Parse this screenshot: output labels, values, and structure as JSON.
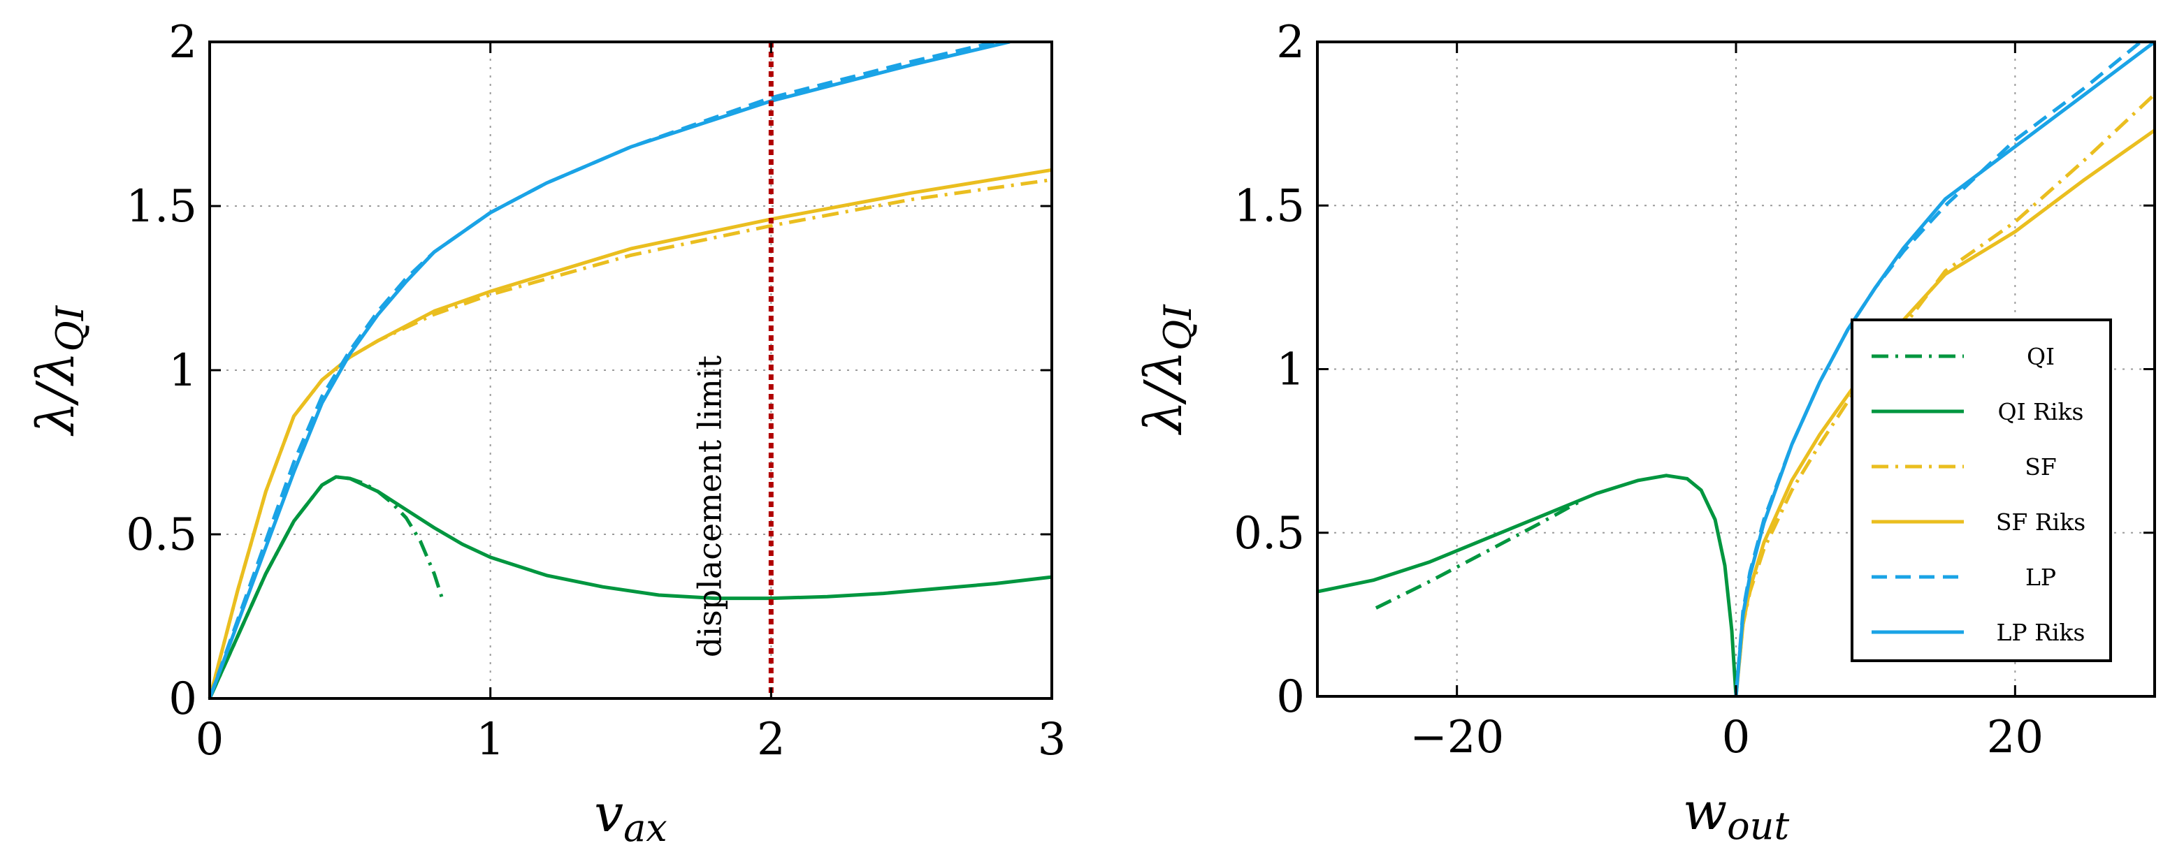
{
  "colors": {
    "qi": "#00963f",
    "sf": "#eabe1f",
    "lp": "#1aa3e6",
    "limit": "#b00000",
    "frame": "#000000"
  },
  "chart_data": [
    {
      "id": "left",
      "type": "line",
      "xlim": [
        0,
        3
      ],
      "ylim": [
        0,
        2
      ],
      "xticks": [
        0,
        1,
        2,
        3
      ],
      "xtick_labels": [
        "0",
        "1",
        "2",
        "3"
      ],
      "yticks": [
        0,
        0.5,
        1,
        1.5,
        2
      ],
      "ytick_labels": [
        "0",
        "0.5",
        "1",
        "1.5",
        "2"
      ],
      "xlabel_base": "v",
      "xlabel_sub": "ax",
      "ylabel_main": "λ/λ",
      "ylabel_sub": "QI",
      "grid": true,
      "annotation": {
        "text": "displacement limit",
        "x": 2,
        "color": "limit"
      },
      "series": [
        {
          "name": "QI",
          "color": "qi",
          "dash": "dashdot",
          "points": [
            [
              0,
              0
            ],
            [
              0.1,
              0.19
            ],
            [
              0.2,
              0.38
            ],
            [
              0.3,
              0.54
            ],
            [
              0.4,
              0.65
            ],
            [
              0.45,
              0.675
            ],
            [
              0.5,
              0.67
            ],
            [
              0.55,
              0.655
            ],
            [
              0.6,
              0.63
            ],
            [
              0.65,
              0.595
            ],
            [
              0.7,
              0.55
            ],
            [
              0.75,
              0.48
            ],
            [
              0.8,
              0.38
            ],
            [
              0.83,
              0.3
            ]
          ]
        },
        {
          "name": "QI Riks",
          "color": "qi",
          "dash": "solid",
          "points": [
            [
              0,
              0
            ],
            [
              0.1,
              0.19
            ],
            [
              0.2,
              0.38
            ],
            [
              0.3,
              0.54
            ],
            [
              0.4,
              0.65
            ],
            [
              0.45,
              0.675
            ],
            [
              0.5,
              0.67
            ],
            [
              0.6,
              0.63
            ],
            [
              0.7,
              0.575
            ],
            [
              0.8,
              0.52
            ],
            [
              0.9,
              0.47
            ],
            [
              1.0,
              0.43
            ],
            [
              1.2,
              0.375
            ],
            [
              1.4,
              0.34
            ],
            [
              1.6,
              0.315
            ],
            [
              1.8,
              0.305
            ],
            [
              2.0,
              0.305
            ],
            [
              2.2,
              0.31
            ],
            [
              2.4,
              0.32
            ],
            [
              2.6,
              0.335
            ],
            [
              2.8,
              0.35
            ],
            [
              3.0,
              0.37
            ]
          ]
        },
        {
          "name": "SF",
          "color": "sf",
          "dash": "dashdot",
          "points": [
            [
              0,
              0
            ],
            [
              0.1,
              0.33
            ],
            [
              0.2,
              0.63
            ],
            [
              0.3,
              0.86
            ],
            [
              0.4,
              0.97
            ],
            [
              0.5,
              1.04
            ],
            [
              0.6,
              1.09
            ],
            [
              0.8,
              1.17
            ],
            [
              1.0,
              1.23
            ],
            [
              1.5,
              1.35
            ],
            [
              2.0,
              1.44
            ],
            [
              2.5,
              1.52
            ],
            [
              3.0,
              1.58
            ]
          ]
        },
        {
          "name": "SF Riks",
          "color": "sf",
          "dash": "solid",
          "points": [
            [
              0,
              0
            ],
            [
              0.1,
              0.33
            ],
            [
              0.2,
              0.63
            ],
            [
              0.3,
              0.86
            ],
            [
              0.4,
              0.97
            ],
            [
              0.5,
              1.04
            ],
            [
              0.6,
              1.09
            ],
            [
              0.8,
              1.18
            ],
            [
              1.0,
              1.24
            ],
            [
              1.5,
              1.37
            ],
            [
              2.0,
              1.46
            ],
            [
              2.5,
              1.54
            ],
            [
              3.0,
              1.61
            ]
          ]
        },
        {
          "name": "LP",
          "color": "lp",
          "dash": "dashed",
          "points": [
            [
              0,
              0
            ],
            [
              0.1,
              0.24
            ],
            [
              0.2,
              0.48
            ],
            [
              0.3,
              0.72
            ],
            [
              0.4,
              0.92
            ],
            [
              0.5,
              1.06
            ],
            [
              0.6,
              1.18
            ],
            [
              0.7,
              1.28
            ],
            [
              0.8,
              1.36
            ],
            [
              1.0,
              1.48
            ],
            [
              1.2,
              1.57
            ],
            [
              1.5,
              1.68
            ],
            [
              2.0,
              1.83
            ],
            [
              2.5,
              1.94
            ],
            [
              2.8,
              2.0
            ]
          ]
        },
        {
          "name": "LP Riks",
          "color": "lp",
          "dash": "solid",
          "points": [
            [
              0,
              0
            ],
            [
              0.1,
              0.23
            ],
            [
              0.2,
              0.46
            ],
            [
              0.3,
              0.69
            ],
            [
              0.4,
              0.9
            ],
            [
              0.5,
              1.05
            ],
            [
              0.6,
              1.17
            ],
            [
              0.7,
              1.27
            ],
            [
              0.8,
              1.36
            ],
            [
              1.0,
              1.48
            ],
            [
              1.2,
              1.57
            ],
            [
              1.5,
              1.68
            ],
            [
              2.0,
              1.82
            ],
            [
              2.5,
              1.93
            ],
            [
              2.85,
              2.0
            ]
          ]
        }
      ]
    },
    {
      "id": "right",
      "type": "line",
      "xlim": [
        -30,
        30
      ],
      "ylim": [
        0,
        2
      ],
      "xticks": [
        -20,
        0,
        20
      ],
      "xtick_labels": [
        "−20",
        "0",
        "20"
      ],
      "yticks": [
        0,
        0.5,
        1,
        1.5,
        2
      ],
      "ytick_labels": [
        "0",
        "0.5",
        "1",
        "1.5",
        "2"
      ],
      "xlabel_base": "w",
      "xlabel_sub": "out",
      "ylabel_main": "λ/λ",
      "ylabel_sub": "QI",
      "grid": true,
      "legend_position": "lower-right",
      "series": [
        {
          "name": "QI",
          "color": "qi",
          "dash": "dashdot",
          "points": [
            [
              -25.8,
              0.27
            ],
            [
              -22,
              0.35
            ],
            [
              -18,
              0.44
            ],
            [
              -14,
              0.53
            ],
            [
              -11,
              0.6
            ]
          ]
        },
        {
          "name": "QI Riks",
          "color": "qi",
          "dash": "solid",
          "points": [
            [
              -30,
              0.32
            ],
            [
              -26,
              0.355
            ],
            [
              -22,
              0.41
            ],
            [
              -18,
              0.48
            ],
            [
              -14,
              0.55
            ],
            [
              -10,
              0.62
            ],
            [
              -7,
              0.66
            ],
            [
              -5,
              0.675
            ],
            [
              -3.5,
              0.665
            ],
            [
              -2.5,
              0.63
            ],
            [
              -1.5,
              0.54
            ],
            [
              -0.8,
              0.4
            ],
            [
              -0.3,
              0.2
            ],
            [
              0,
              0
            ]
          ]
        },
        {
          "name": "SF",
          "color": "sf",
          "dash": "dashdot",
          "points": [
            [
              0,
              0
            ],
            [
              0.5,
              0.22
            ],
            [
              1,
              0.32
            ],
            [
              2,
              0.45
            ],
            [
              4,
              0.63
            ],
            [
              6,
              0.77
            ],
            [
              8,
              0.9
            ],
            [
              10,
              1.02
            ],
            [
              12,
              1.13
            ],
            [
              15,
              1.3
            ],
            [
              20,
              1.45
            ],
            [
              25,
              1.64
            ],
            [
              30,
              1.84
            ]
          ]
        },
        {
          "name": "SF Riks",
          "color": "sf",
          "dash": "solid",
          "points": [
            [
              0,
              0
            ],
            [
              0.5,
              0.22
            ],
            [
              1,
              0.33
            ],
            [
              2,
              0.47
            ],
            [
              4,
              0.66
            ],
            [
              6,
              0.8
            ],
            [
              8,
              0.92
            ],
            [
              10,
              1.04
            ],
            [
              12,
              1.15
            ],
            [
              15,
              1.29
            ],
            [
              20,
              1.42
            ],
            [
              25,
              1.58
            ],
            [
              30,
              1.73
            ]
          ]
        },
        {
          "name": "LP",
          "color": "lp",
          "dash": "dashed",
          "points": [
            [
              0,
              0
            ],
            [
              0.5,
              0.26
            ],
            [
              1,
              0.38
            ],
            [
              2,
              0.54
            ],
            [
              4,
              0.77
            ],
            [
              6,
              0.96
            ],
            [
              8,
              1.12
            ],
            [
              10,
              1.25
            ],
            [
              12,
              1.36
            ],
            [
              15,
              1.5
            ],
            [
              20,
              1.7
            ],
            [
              25,
              1.86
            ],
            [
              29,
              2.0
            ]
          ]
        },
        {
          "name": "LP Riks",
          "color": "lp",
          "dash": "solid",
          "points": [
            [
              0,
              0
            ],
            [
              0.5,
              0.25
            ],
            [
              1,
              0.37
            ],
            [
              2,
              0.53
            ],
            [
              4,
              0.77
            ],
            [
              6,
              0.96
            ],
            [
              8,
              1.12
            ],
            [
              10,
              1.25
            ],
            [
              12,
              1.37
            ],
            [
              15,
              1.52
            ],
            [
              20,
              1.68
            ],
            [
              25,
              1.84
            ],
            [
              30,
              2.0
            ]
          ]
        }
      ]
    }
  ]
}
